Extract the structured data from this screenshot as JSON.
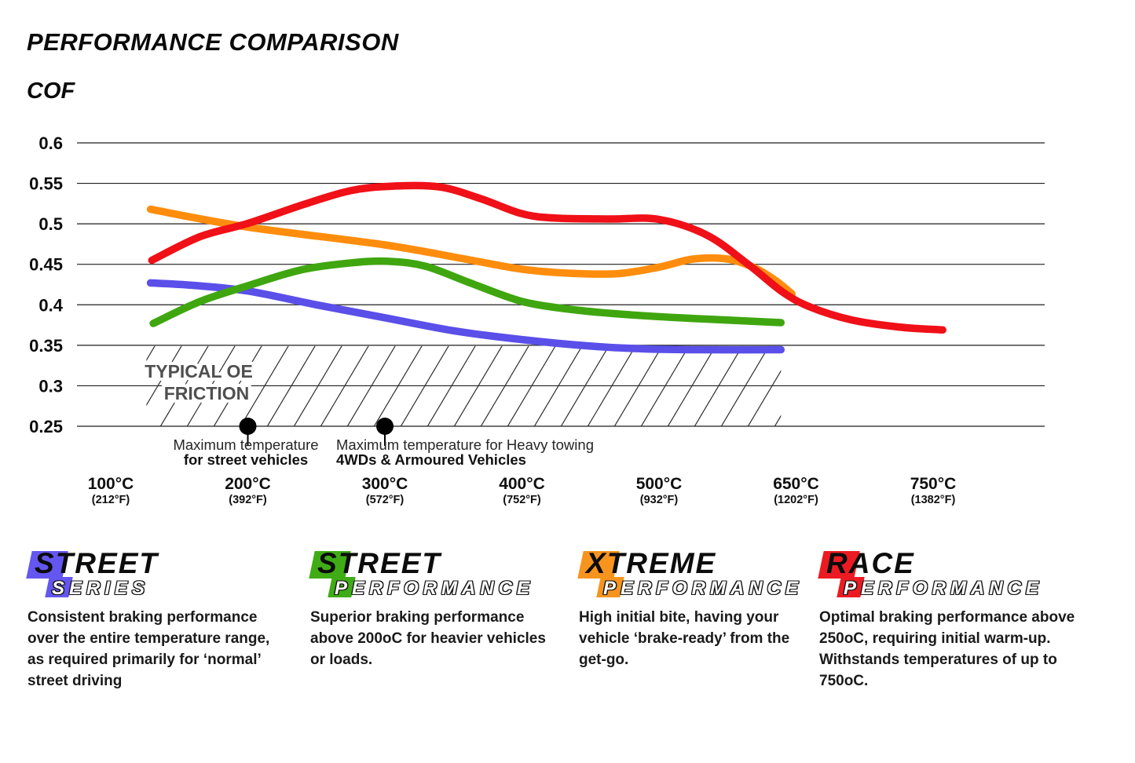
{
  "title": "PERFORMANCE COMPARISON",
  "y_axis_title": "COF",
  "chart_data": {
    "type": "line",
    "title": "PERFORMANCE COMPARISON",
    "ylabel": "COF",
    "ylim": [
      0.25,
      0.6
    ],
    "grid": true,
    "x_axis_note": "categorical temperature axis, evenly spaced ticks; series points use x_unit = tick index (0 = 100°C)",
    "y_ticks": [
      {
        "label": "0.6",
        "value": 0.6
      },
      {
        "label": "0.55",
        "value": 0.55
      },
      {
        "label": "0.5",
        "value": 0.5
      },
      {
        "label": "0.45",
        "value": 0.45
      },
      {
        "label": "0.4",
        "value": 0.4
      },
      {
        "label": "0.35",
        "value": 0.35
      },
      {
        "label": "0.3",
        "value": 0.3
      },
      {
        "label": "0.25",
        "value": 0.25
      }
    ],
    "x_ticks": [
      {
        "c": "100°C",
        "f": "(212°F)"
      },
      {
        "c": "200°C",
        "f": "(392°F)"
      },
      {
        "c": "300°C",
        "f": "(572°F)"
      },
      {
        "c": "400°C",
        "f": "(752°F)"
      },
      {
        "c": "500°C",
        "f": "(932°F)"
      },
      {
        "c": "650°C",
        "f": "(1202°F)"
      },
      {
        "c": "750°C",
        "f": "(1382°F)"
      }
    ],
    "series": [
      {
        "name": "Street Series",
        "color": "#5A4FE8",
        "points": [
          [
            0.29,
            0.427
          ],
          [
            0.6,
            0.424
          ],
          [
            1.0,
            0.417
          ],
          [
            1.5,
            0.4
          ],
          [
            2.0,
            0.384
          ],
          [
            2.5,
            0.368
          ],
          [
            3.0,
            0.357
          ],
          [
            3.5,
            0.349
          ],
          [
            3.9,
            0.3455
          ],
          [
            4.3,
            0.3445
          ],
          [
            4.89,
            0.3445
          ]
        ]
      },
      {
        "name": "Street Performance",
        "color": "#3FA60F",
        "points": [
          [
            0.31,
            0.377
          ],
          [
            0.65,
            0.404
          ],
          [
            1.0,
            0.4235
          ],
          [
            1.4,
            0.4435
          ],
          [
            1.8,
            0.4525
          ],
          [
            2.05,
            0.4535
          ],
          [
            2.3,
            0.4475
          ],
          [
            2.6,
            0.4285
          ],
          [
            2.9,
            0.4095
          ],
          [
            3.1,
            0.4005
          ],
          [
            3.45,
            0.3925
          ],
          [
            3.8,
            0.3875
          ],
          [
            4.2,
            0.3835
          ],
          [
            4.89,
            0.378
          ]
        ]
      },
      {
        "name": "Xtreme Performance",
        "color": "#FF8D0D",
        "points": [
          [
            0.29,
            0.518
          ],
          [
            1.0,
            0.496
          ],
          [
            2.0,
            0.474
          ],
          [
            2.6,
            0.456
          ],
          [
            3.0,
            0.444
          ],
          [
            3.35,
            0.439
          ],
          [
            3.7,
            0.4385
          ],
          [
            4.0,
            0.4465
          ],
          [
            4.25,
            0.4565
          ],
          [
            4.5,
            0.4565
          ],
          [
            4.7,
            0.4455
          ],
          [
            4.85,
            0.43
          ],
          [
            4.97,
            0.4135
          ]
        ]
      },
      {
        "name": "Race Performance",
        "color": "#F01018",
        "points": [
          [
            0.3,
            0.455
          ],
          [
            0.65,
            0.484
          ],
          [
            1.0,
            0.5005
          ],
          [
            1.4,
            0.5235
          ],
          [
            1.75,
            0.541
          ],
          [
            2.05,
            0.5465
          ],
          [
            2.4,
            0.5455
          ],
          [
            2.7,
            0.531
          ],
          [
            3.0,
            0.5125
          ],
          [
            3.25,
            0.507
          ],
          [
            3.65,
            0.506
          ],
          [
            4.0,
            0.5055
          ],
          [
            4.35,
            0.486
          ],
          [
            4.65,
            0.45
          ],
          [
            4.9,
            0.416
          ],
          [
            5.1,
            0.3975
          ],
          [
            5.4,
            0.3815
          ],
          [
            5.75,
            0.3725
          ],
          [
            6.07,
            0.369
          ]
        ]
      }
    ],
    "oe_band": {
      "line1": "TYPICAL OE",
      "line2": "FRICTION",
      "from_cof": 0.25,
      "to_cof": 0.35,
      "from_u": 0.26,
      "to_u": 4.89
    },
    "markers": [
      {
        "u": 1,
        "value": 0.25,
        "line1": "Maximum temperature",
        "line2": "for street vehicles"
      },
      {
        "u": 2,
        "value": 0.25,
        "line1": "Maximum temperature for Heavy towing",
        "line2": "4WDs & Armoured Vehicles"
      }
    ]
  },
  "legend": {
    "items": [
      {
        "name": "Street Series",
        "color": "#6456F0",
        "line1_letter": "S",
        "line1_rest": "TREET",
        "line2_letter": "S",
        "line2_rest": "ERIES",
        "description": "Consistent braking performance over the entire temperature range, as required primarily for ‘normal’ street driving"
      },
      {
        "name": "Street Performance",
        "color": "#3FAC16",
        "line1_letter": "S",
        "line1_rest": "TREET",
        "line2_letter": "P",
        "line2_rest": "ERFORMANCE",
        "description": "Superior braking performance above 200oC for heavier vehicles or loads."
      },
      {
        "name": "Xtreme Performance",
        "color": "#F7941E",
        "line1_letter": "X",
        "line1_rest": "TREME",
        "line2_letter": "P",
        "line2_rest": "ERFORMANCE",
        "description": "High initial bite, having your vehicle ‘brake-ready’ from the get-go."
      },
      {
        "name": "Race Performance",
        "color": "#EC1B23",
        "line1_letter": "R",
        "line1_rest": "ACE",
        "line2_letter": "P",
        "line2_rest": "ERFORMANCE",
        "description": "Optimal braking performance above 250oC, requiring initial warm-up. Withstands temperatures of up to 750oC."
      }
    ]
  }
}
